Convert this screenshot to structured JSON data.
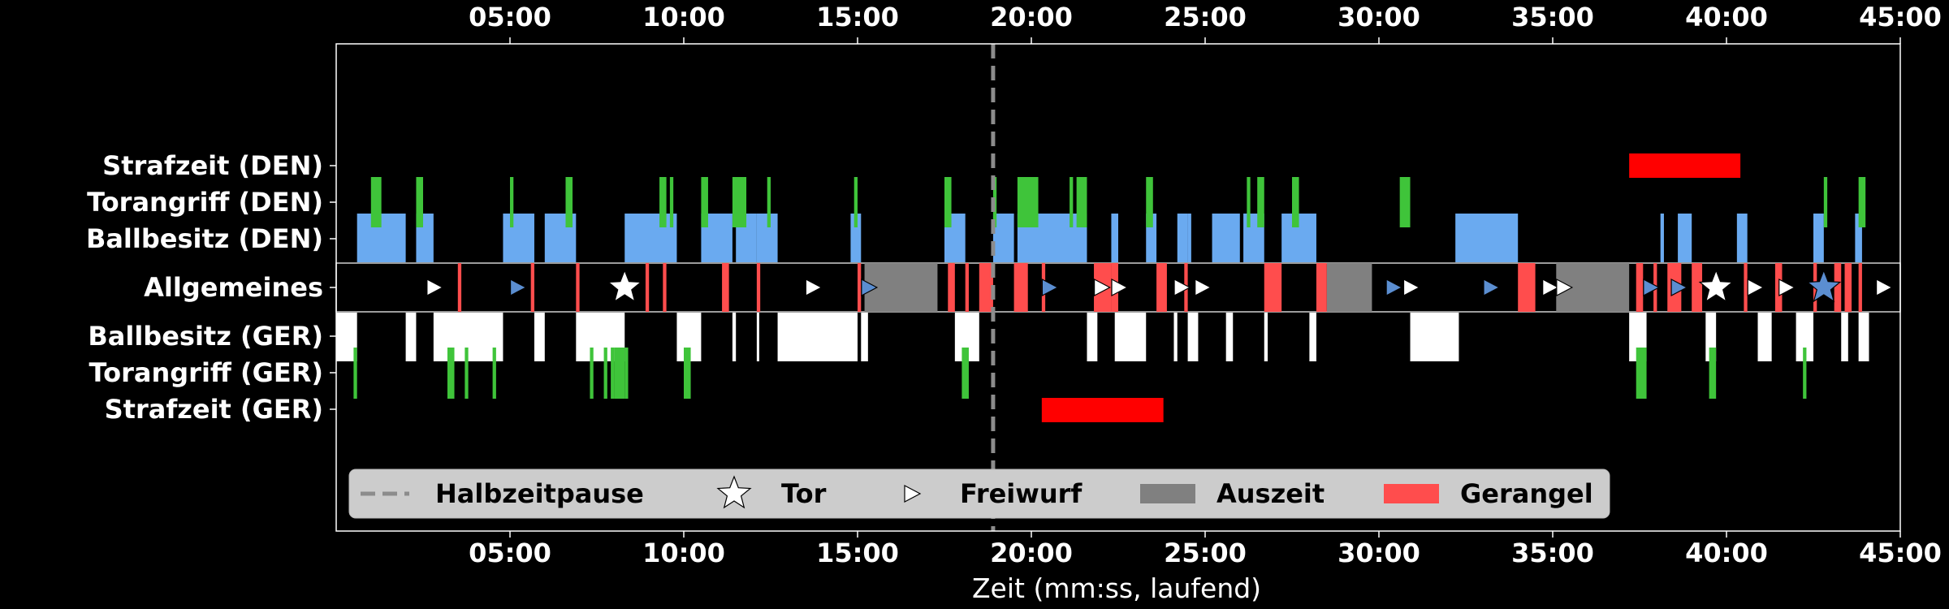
{
  "chart_data": {
    "type": "timeline",
    "xlabel": "Zeit (mm:ss, laufend)",
    "xlim": [
      0,
      45
    ],
    "x_ticks": [
      "05:00",
      "10:00",
      "15:00",
      "20:00",
      "25:00",
      "30:00",
      "35:00",
      "40:00",
      "45:00"
    ],
    "x_tick_values": [
      5,
      10,
      15,
      20,
      25,
      30,
      35,
      40,
      45
    ],
    "rows": [
      "Strafzeit (DEN)",
      "Torangriff (DEN)",
      "Ballbesitz (DEN)",
      "Allgemeines",
      "Ballbesitz (GER)",
      "Torangriff (GER)",
      "Strafzeit (GER)"
    ],
    "colors": {
      "background": "#000000",
      "text": "#ffffff",
      "ballbesitz_den": "#6aaaf0",
      "ballbesitz_ger": "#ffffff",
      "torangriff": "#3fc43a",
      "strafzeit": "#ff0000",
      "gerangel": "#ff4d4d",
      "auszeit": "#808080",
      "halbzeit": "#8c8c8c",
      "den_marker": "#5b8ed1",
      "ger_marker": "#ffffff",
      "legend_bg": "#cccccc"
    },
    "halftime": 18.9,
    "ballbesitz_den": [
      [
        0.6,
        2.0
      ],
      [
        2.3,
        2.8
      ],
      [
        4.8,
        5.7
      ],
      [
        6.0,
        6.9
      ],
      [
        8.3,
        9.8
      ],
      [
        10.5,
        11.4
      ],
      [
        11.5,
        12.1
      ],
      [
        12.1,
        12.7
      ],
      [
        14.8,
        15.1
      ],
      [
        17.5,
        18.1
      ],
      [
        18.9,
        19.5
      ],
      [
        19.6,
        21.6
      ],
      [
        22.3,
        22.5
      ],
      [
        23.3,
        23.6
      ],
      [
        24.2,
        24.5
      ],
      [
        24.5,
        24.6
      ],
      [
        25.2,
        26.0
      ],
      [
        26.1,
        26.7
      ],
      [
        27.2,
        28.2
      ],
      [
        32.2,
        34.0
      ],
      [
        38.1,
        38.2
      ],
      [
        38.6,
        39.0
      ],
      [
        40.3,
        40.6
      ],
      [
        42.5,
        42.8
      ],
      [
        43.7,
        43.9
      ]
    ],
    "ballbesitz_ger": [
      [
        0.0,
        0.6
      ],
      [
        2.0,
        2.3
      ],
      [
        2.8,
        4.8
      ],
      [
        5.7,
        6.0
      ],
      [
        6.9,
        8.3
      ],
      [
        9.8,
        10.5
      ],
      [
        11.4,
        11.5
      ],
      [
        12.1,
        12.1
      ],
      [
        12.7,
        15.0
      ],
      [
        15.1,
        15.3
      ],
      [
        17.8,
        18.5
      ],
      [
        21.6,
        21.9
      ],
      [
        22.4,
        23.3
      ],
      [
        24.1,
        24.2
      ],
      [
        24.5,
        24.8
      ],
      [
        25.6,
        25.8
      ],
      [
        26.7,
        26.8
      ],
      [
        28.0,
        28.2
      ],
      [
        30.9,
        32.3
      ],
      [
        37.2,
        37.7
      ],
      [
        39.4,
        39.7
      ],
      [
        40.9,
        41.3
      ],
      [
        42.0,
        42.5
      ],
      [
        43.3,
        43.5
      ],
      [
        43.8,
        44.1
      ]
    ],
    "torangriff_den": [
      [
        1.0,
        1.3
      ],
      [
        2.3,
        2.5
      ],
      [
        5.0,
        5.1
      ],
      [
        6.6,
        6.8
      ],
      [
        9.3,
        9.5
      ],
      [
        9.6,
        9.7
      ],
      [
        10.5,
        10.7
      ],
      [
        11.4,
        11.8
      ],
      [
        12.4,
        12.5
      ],
      [
        14.9,
        15.0
      ],
      [
        17.5,
        17.7
      ],
      [
        18.9,
        19.0
      ],
      [
        19.6,
        20.2
      ],
      [
        21.1,
        21.2
      ],
      [
        21.3,
        21.6
      ],
      [
        23.3,
        23.5
      ],
      [
        26.2,
        26.3
      ],
      [
        26.5,
        26.7
      ],
      [
        27.5,
        27.7
      ],
      [
        30.6,
        30.9
      ],
      [
        42.8,
        42.9
      ],
      [
        43.8,
        44.0
      ]
    ],
    "torangriff_ger": [
      [
        0.5,
        0.6
      ],
      [
        3.2,
        3.4
      ],
      [
        3.7,
        3.8
      ],
      [
        4.5,
        4.6
      ],
      [
        7.3,
        7.4
      ],
      [
        7.7,
        7.8
      ],
      [
        7.9,
        8.0
      ],
      [
        8.0,
        8.3
      ],
      [
        8.3,
        8.4
      ],
      [
        10.0,
        10.2
      ],
      [
        18.0,
        18.2
      ],
      [
        37.4,
        37.7
      ],
      [
        39.5,
        39.7
      ],
      [
        42.2,
        42.3
      ]
    ],
    "strafzeit_den": [
      [
        37.2,
        40.4
      ]
    ],
    "strafzeit_ger": [
      [
        20.3,
        23.8
      ]
    ],
    "auszeit": [
      [
        15.2,
        17.3
      ],
      [
        28.5,
        29.8
      ],
      [
        35.1,
        37.2
      ]
    ],
    "gerangel": [
      [
        3.5,
        3.6
      ],
      [
        5.6,
        5.7
      ],
      [
        6.9,
        7.0
      ],
      [
        8.9,
        9.0
      ],
      [
        9.4,
        9.5
      ],
      [
        11.1,
        11.3
      ],
      [
        12.1,
        12.2
      ],
      [
        15.0,
        15.1
      ],
      [
        17.6,
        17.8
      ],
      [
        18.1,
        18.2
      ],
      [
        18.5,
        18.9
      ],
      [
        19.5,
        19.9
      ],
      [
        20.3,
        20.4
      ],
      [
        21.8,
        22.3
      ],
      [
        22.3,
        22.5
      ],
      [
        23.6,
        23.9
      ],
      [
        24.4,
        24.5
      ],
      [
        26.7,
        27.2
      ],
      [
        28.2,
        28.5
      ],
      [
        34.0,
        34.5
      ],
      [
        37.4,
        37.6
      ],
      [
        37.9,
        38.0
      ],
      [
        38.3,
        38.7
      ],
      [
        39.0,
        39.3
      ],
      [
        40.5,
        40.6
      ],
      [
        41.4,
        41.6
      ],
      [
        42.5,
        42.6
      ],
      [
        43.1,
        43.3
      ],
      [
        43.4,
        43.6
      ],
      [
        43.8,
        43.9
      ]
    ],
    "freiwurf": [
      {
        "t": 2.8,
        "team": "GER"
      },
      {
        "t": 5.2,
        "team": "DEN"
      },
      {
        "t": 13.7,
        "team": "GER"
      },
      {
        "t": 15.3,
        "team": "DEN"
      },
      {
        "t": 20.5,
        "team": "DEN"
      },
      {
        "t": 22.0,
        "team": "GER"
      },
      {
        "t": 22.5,
        "team": "GER"
      },
      {
        "t": 24.3,
        "team": "GER"
      },
      {
        "t": 24.9,
        "team": "GER"
      },
      {
        "t": 30.4,
        "team": "DEN"
      },
      {
        "t": 30.9,
        "team": "GER"
      },
      {
        "t": 33.2,
        "team": "DEN"
      },
      {
        "t": 34.9,
        "team": "GER"
      },
      {
        "t": 35.3,
        "team": "GER"
      },
      {
        "t": 37.8,
        "team": "DEN"
      },
      {
        "t": 38.6,
        "team": "DEN"
      },
      {
        "t": 40.8,
        "team": "GER"
      },
      {
        "t": 41.7,
        "team": "GER"
      },
      {
        "t": 44.5,
        "team": "GER"
      }
    ],
    "tor": [
      {
        "t": 8.3,
        "team": "GER"
      },
      {
        "t": 39.7,
        "team": "GER"
      },
      {
        "t": 42.8,
        "team": "DEN"
      }
    ],
    "legend": {
      "placement": "lower-left",
      "entries": [
        {
          "label": "Halbzeitpause",
          "symbol": "dashed-line"
        },
        {
          "label": "Tor",
          "symbol": "star"
        },
        {
          "label": "Freiwurf",
          "symbol": "triangle"
        },
        {
          "label": "Auszeit",
          "symbol": "gray-patch"
        },
        {
          "label": "Gerangel",
          "symbol": "red-patch"
        }
      ]
    }
  }
}
